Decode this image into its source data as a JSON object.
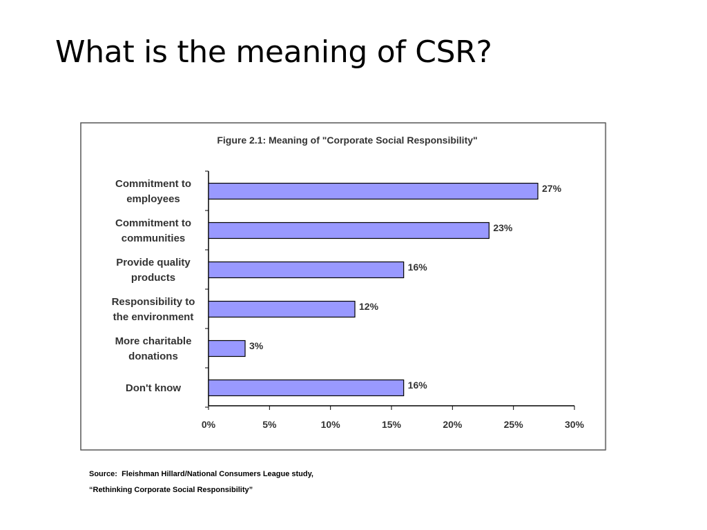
{
  "slide": {
    "title": "What is the meaning of CSR?",
    "source_line1": "Source:  Fleishman Hillard/National Consumers League study,",
    "source_line2": "“Rethinking Corporate Social Responsibility”"
  },
  "chart_data": {
    "type": "bar",
    "orientation": "horizontal",
    "title": "Figure 2.1: Meaning of \"Corporate Social Responsibility\"",
    "categories": [
      [
        "Commitment to",
        "employees"
      ],
      [
        "Commitment to",
        "communities"
      ],
      [
        "Provide quality",
        "products"
      ],
      [
        "Responsibility to",
        "the environment"
      ],
      [
        "More charitable",
        "donations"
      ],
      [
        "Don't know"
      ]
    ],
    "values": [
      27,
      23,
      16,
      12,
      3,
      16
    ],
    "value_labels": [
      "27%",
      "23%",
      "16%",
      "12%",
      "3%",
      "16%"
    ],
    "xlim": [
      0,
      30
    ],
    "xticks": [
      0,
      5,
      10,
      15,
      20,
      25,
      30
    ],
    "xtick_labels": [
      "0%",
      "5%",
      "10%",
      "15%",
      "20%",
      "25%",
      "30%"
    ],
    "bar_color": "#9999ff",
    "grid": false,
    "legend": "none"
  }
}
